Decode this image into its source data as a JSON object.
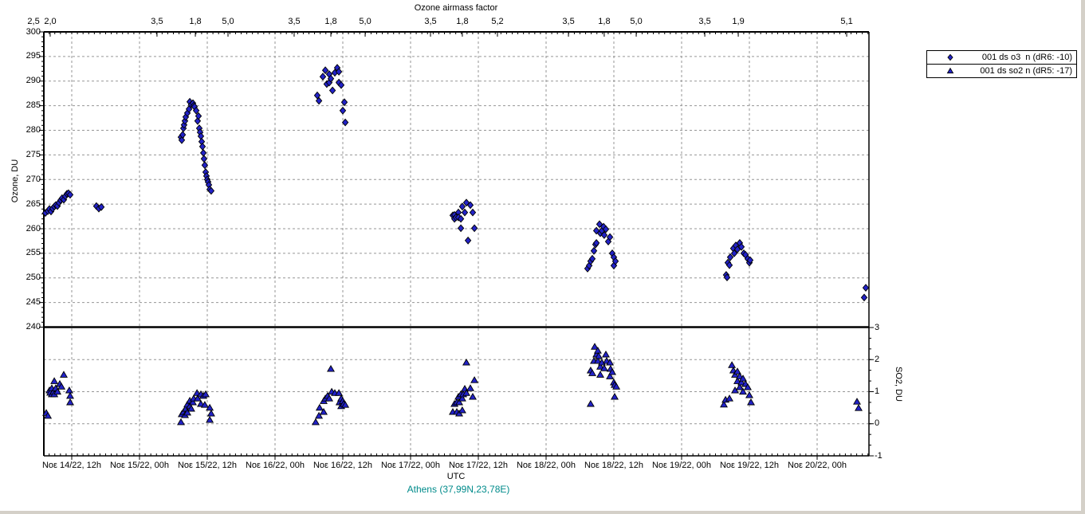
{
  "window": {
    "frame_color": "#d4d0c8",
    "canvas_color": "#ffffff"
  },
  "colors": {
    "marker_fill": "#2222C8",
    "marker_edge": "#000000",
    "grid": "#969696",
    "axis": "#000000",
    "station_text": "#008B8B"
  },
  "chart_data": {
    "type": "scatter",
    "top_axis": {
      "title": "Ozone airmass factor",
      "labels": [
        {
          "t": 14.218,
          "text": "2,5"
        },
        {
          "t": 14.341,
          "text": "2,0"
        },
        {
          "t": 15.129,
          "text": "3,5"
        },
        {
          "t": 15.412,
          "text": "1,8"
        },
        {
          "t": 15.653,
          "text": "5,0"
        },
        {
          "t": 16.141,
          "text": "3,5"
        },
        {
          "t": 16.412,
          "text": "1,8"
        },
        {
          "t": 16.665,
          "text": "5,0"
        },
        {
          "t": 17.147,
          "text": "3,5"
        },
        {
          "t": 17.382,
          "text": "1,8"
        },
        {
          "t": 17.641,
          "text": "5,2"
        },
        {
          "t": 18.165,
          "text": "3,5"
        },
        {
          "t": 18.429,
          "text": "1,8"
        },
        {
          "t": 18.665,
          "text": "5,0"
        },
        {
          "t": 19.171,
          "text": "3,5"
        },
        {
          "t": 19.418,
          "text": "1,9"
        },
        {
          "t": 20.218,
          "text": "5,1"
        }
      ]
    },
    "x_axis": {
      "label": "UTC",
      "range_days": [
        14.294,
        20.382
      ],
      "gridlines": [
        14.5,
        15.0,
        15.5,
        16.0,
        16.5,
        17.0,
        17.5,
        18.0,
        18.5,
        19.0,
        19.5,
        20.0
      ],
      "tick_labels": [
        "Νοε 14/22, 12h",
        "Νοε 15/22, 00h",
        "Νοε 15/22, 12h",
        "Νοε 16/22, 00h",
        "Νοε 16/22, 12h",
        "Νοε 17/22, 00h",
        "Νοε 17/22, 12h",
        "Νοε 18/22, 00h",
        "Νοε 18/22, 12h",
        "Νοε 19/22, 00h",
        "Νοε 19/22, 12h",
        "Νοε 20/22, 00h"
      ]
    },
    "left_axis": {
      "label": "Ozone, DU",
      "min": 240,
      "max": 300,
      "ticks": [
        300,
        295,
        290,
        285,
        280,
        275,
        270,
        265,
        260,
        255,
        250,
        245,
        240
      ]
    },
    "right_axis": {
      "label": "SO2, DU",
      "min": -1,
      "max": 3,
      "ticks": [
        3,
        2,
        1,
        0,
        -1
      ]
    },
    "separator_value": 240,
    "station": "Athens (37,99N,23,78E)",
    "series": [
      {
        "name": "001 ds o3  n (dR6: -10)",
        "marker": "diamond",
        "color": "#2222C8",
        "panel": "ozone",
        "points": [
          [
            14.306,
            263.2
          ],
          [
            14.324,
            263.6
          ],
          [
            14.335,
            264.0
          ],
          [
            14.347,
            263.5
          ],
          [
            14.359,
            264.1
          ],
          [
            14.371,
            264.5
          ],
          [
            14.382,
            264.8
          ],
          [
            14.394,
            264.6
          ],
          [
            14.406,
            265.3
          ],
          [
            14.418,
            265.8
          ],
          [
            14.429,
            266.2
          ],
          [
            14.441,
            265.9
          ],
          [
            14.453,
            266.6
          ],
          [
            14.465,
            267.1
          ],
          [
            14.476,
            267.2
          ],
          [
            14.488,
            266.9
          ],
          [
            14.682,
            264.6
          ],
          [
            14.7,
            264.1
          ],
          [
            14.718,
            264.4
          ],
          [
            15.306,
            278.6
          ],
          [
            15.312,
            278.0
          ],
          [
            15.318,
            279.1
          ],
          [
            15.324,
            280.4
          ],
          [
            15.329,
            281.1
          ],
          [
            15.335,
            281.9
          ],
          [
            15.341,
            282.7
          ],
          [
            15.353,
            283.5
          ],
          [
            15.365,
            284.3
          ],
          [
            15.371,
            285.8
          ],
          [
            15.382,
            285.2
          ],
          [
            15.394,
            285.5
          ],
          [
            15.4,
            285.0
          ],
          [
            15.406,
            284.8
          ],
          [
            15.418,
            284.0
          ],
          [
            15.429,
            281.9
          ],
          [
            15.435,
            282.9
          ],
          [
            15.441,
            280.4
          ],
          [
            15.447,
            279.6
          ],
          [
            15.453,
            278.8
          ],
          [
            15.459,
            277.7
          ],
          [
            15.465,
            276.7
          ],
          [
            15.471,
            275.4
          ],
          [
            15.476,
            274.2
          ],
          [
            15.482,
            272.9
          ],
          [
            15.488,
            271.5
          ],
          [
            15.494,
            270.7
          ],
          [
            15.5,
            270.0
          ],
          [
            15.506,
            269.5
          ],
          [
            15.512,
            268.9
          ],
          [
            15.518,
            268.0
          ],
          [
            15.529,
            267.7
          ],
          [
            16.312,
            287.1
          ],
          [
            16.324,
            286.0
          ],
          [
            16.353,
            290.9
          ],
          [
            16.371,
            292.2
          ],
          [
            16.382,
            289.4
          ],
          [
            16.4,
            291.4
          ],
          [
            16.4,
            289.7
          ],
          [
            16.412,
            290.5
          ],
          [
            16.424,
            288.1
          ],
          [
            16.441,
            291.7
          ],
          [
            16.459,
            292.7
          ],
          [
            16.471,
            291.9
          ],
          [
            16.471,
            289.7
          ],
          [
            16.488,
            289.2
          ],
          [
            16.5,
            284.0
          ],
          [
            16.512,
            285.7
          ],
          [
            16.518,
            281.6
          ],
          [
            17.312,
            262.7
          ],
          [
            17.324,
            262.8
          ],
          [
            17.324,
            262.0
          ],
          [
            17.335,
            262.3
          ],
          [
            17.353,
            263.3
          ],
          [
            17.353,
            262.3
          ],
          [
            17.371,
            262.0
          ],
          [
            17.371,
            260.1
          ],
          [
            17.382,
            264.5
          ],
          [
            17.4,
            263.3
          ],
          [
            17.412,
            265.3
          ],
          [
            17.424,
            257.6
          ],
          [
            17.441,
            264.8
          ],
          [
            17.459,
            263.3
          ],
          [
            17.471,
            260.1
          ],
          [
            18.306,
            251.9
          ],
          [
            18.318,
            252.5
          ],
          [
            18.329,
            253.4
          ],
          [
            18.341,
            253.9
          ],
          [
            18.353,
            255.5
          ],
          [
            18.365,
            256.8
          ],
          [
            18.371,
            259.6
          ],
          [
            18.371,
            257.1
          ],
          [
            18.394,
            260.9
          ],
          [
            18.4,
            259.1
          ],
          [
            18.412,
            259.6
          ],
          [
            18.424,
            260.4
          ],
          [
            18.429,
            258.7
          ],
          [
            18.441,
            259.9
          ],
          [
            18.459,
            257.4
          ],
          [
            18.471,
            258.3
          ],
          [
            18.488,
            255.0
          ],
          [
            18.5,
            254.2
          ],
          [
            18.5,
            252.5
          ],
          [
            18.512,
            253.4
          ],
          [
            19.329,
            250.6
          ],
          [
            19.335,
            250.1
          ],
          [
            19.341,
            253.1
          ],
          [
            19.353,
            252.6
          ],
          [
            19.359,
            254.2
          ],
          [
            19.382,
            256.0
          ],
          [
            19.388,
            255.0
          ],
          [
            19.4,
            256.6
          ],
          [
            19.412,
            255.8
          ],
          [
            19.429,
            257.1
          ],
          [
            19.441,
            256.3
          ],
          [
            19.459,
            255.0
          ],
          [
            19.471,
            254.7
          ],
          [
            19.488,
            253.9
          ],
          [
            19.5,
            253.1
          ],
          [
            19.506,
            253.6
          ],
          [
            20.347,
            246.0
          ],
          [
            20.359,
            248.0
          ]
        ]
      },
      {
        "name": "001 ds so2 n (dR5: -17)",
        "marker": "triangle",
        "color": "#2222C8",
        "panel": "so2",
        "points": [
          [
            14.312,
            0.34
          ],
          [
            14.324,
            0.25
          ],
          [
            14.335,
            1.04
          ],
          [
            14.341,
            0.97
          ],
          [
            14.353,
            1.11
          ],
          [
            14.353,
            0.92
          ],
          [
            14.365,
            1.0
          ],
          [
            14.371,
            1.33
          ],
          [
            14.371,
            0.92
          ],
          [
            14.382,
            1.11
          ],
          [
            14.394,
            1.0
          ],
          [
            14.412,
            1.24
          ],
          [
            14.424,
            1.16
          ],
          [
            14.441,
            1.53
          ],
          [
            14.482,
            1.04
          ],
          [
            14.488,
            0.87
          ],
          [
            14.488,
            0.67
          ],
          [
            15.306,
            0.05
          ],
          [
            15.312,
            0.3
          ],
          [
            15.324,
            0.37
          ],
          [
            15.335,
            0.27
          ],
          [
            15.341,
            0.47
          ],
          [
            15.353,
            0.6
          ],
          [
            15.353,
            0.35
          ],
          [
            15.371,
            0.72
          ],
          [
            15.371,
            0.55
          ],
          [
            15.382,
            0.47
          ],
          [
            15.394,
            0.67
          ],
          [
            15.4,
            0.79
          ],
          [
            15.424,
            0.96
          ],
          [
            15.429,
            0.79
          ],
          [
            15.453,
            0.92
          ],
          [
            15.453,
            0.62
          ],
          [
            15.471,
            0.87
          ],
          [
            15.482,
            0.59
          ],
          [
            15.488,
            0.92
          ],
          [
            15.518,
            0.5
          ],
          [
            15.518,
            0.12
          ],
          [
            15.529,
            0.32
          ],
          [
            16.3,
            0.05
          ],
          [
            16.324,
            0.25
          ],
          [
            16.329,
            0.5
          ],
          [
            16.359,
            0.71
          ],
          [
            16.359,
            0.37
          ],
          [
            16.371,
            0.79
          ],
          [
            16.388,
            0.87
          ],
          [
            16.4,
            0.79
          ],
          [
            16.412,
            1.71
          ],
          [
            16.418,
            1.0
          ],
          [
            16.441,
            0.96
          ],
          [
            16.471,
            0.96
          ],
          [
            16.476,
            0.67
          ],
          [
            16.488,
            0.79
          ],
          [
            16.488,
            0.55
          ],
          [
            16.5,
            0.71
          ],
          [
            16.506,
            0.62
          ],
          [
            16.518,
            0.59
          ],
          [
            17.312,
            0.37
          ],
          [
            17.324,
            0.62
          ],
          [
            17.341,
            0.67
          ],
          [
            17.341,
            0.37
          ],
          [
            17.353,
            0.84
          ],
          [
            17.359,
            0.67
          ],
          [
            17.359,
            0.32
          ],
          [
            17.371,
            0.92
          ],
          [
            17.382,
            0.79
          ],
          [
            17.382,
            0.42
          ],
          [
            17.388,
            0.92
          ],
          [
            17.4,
            1.09
          ],
          [
            17.412,
            1.91
          ],
          [
            17.412,
            0.96
          ],
          [
            17.441,
            1.11
          ],
          [
            17.459,
            0.84
          ],
          [
            17.471,
            1.36
          ],
          [
            18.329,
            1.66
          ],
          [
            18.329,
            0.62
          ],
          [
            18.341,
            1.58
          ],
          [
            18.353,
            1.96
          ],
          [
            18.359,
            2.4
          ],
          [
            18.371,
            2.16
          ],
          [
            18.382,
            2.28
          ],
          [
            18.382,
            1.96
          ],
          [
            18.388,
            2.11
          ],
          [
            18.4,
            1.78
          ],
          [
            18.4,
            1.53
          ],
          [
            18.412,
            1.91
          ],
          [
            18.429,
            1.73
          ],
          [
            18.441,
            2.16
          ],
          [
            18.447,
            1.96
          ],
          [
            18.471,
            1.91
          ],
          [
            18.471,
            1.48
          ],
          [
            18.476,
            1.71
          ],
          [
            18.488,
            1.61
          ],
          [
            18.5,
            1.29
          ],
          [
            18.506,
            1.21
          ],
          [
            18.506,
            0.84
          ],
          [
            18.518,
            1.16
          ],
          [
            19.312,
            0.6
          ],
          [
            19.324,
            0.75
          ],
          [
            19.353,
            0.79
          ],
          [
            19.371,
            1.83
          ],
          [
            19.382,
            1.66
          ],
          [
            19.394,
            1.53
          ],
          [
            19.394,
            1.04
          ],
          [
            19.412,
            1.63
          ],
          [
            19.412,
            1.33
          ],
          [
            19.429,
            1.48
          ],
          [
            19.429,
            1.14
          ],
          [
            19.441,
            1.29
          ],
          [
            19.453,
            1.41
          ],
          [
            19.453,
            1.0
          ],
          [
            19.471,
            1.24
          ],
          [
            19.488,
            1.14
          ],
          [
            19.5,
            0.89
          ],
          [
            19.512,
            0.67
          ],
          [
            20.294,
            0.69
          ],
          [
            20.306,
            0.49
          ]
        ]
      }
    ]
  },
  "legend": {
    "entries": [
      {
        "marker": "diamond-icon",
        "label": "001 ds o3  n (dR6: -10)"
      },
      {
        "marker": "triangle-icon",
        "label": "001 ds so2 n (dR5: -17)"
      }
    ]
  }
}
